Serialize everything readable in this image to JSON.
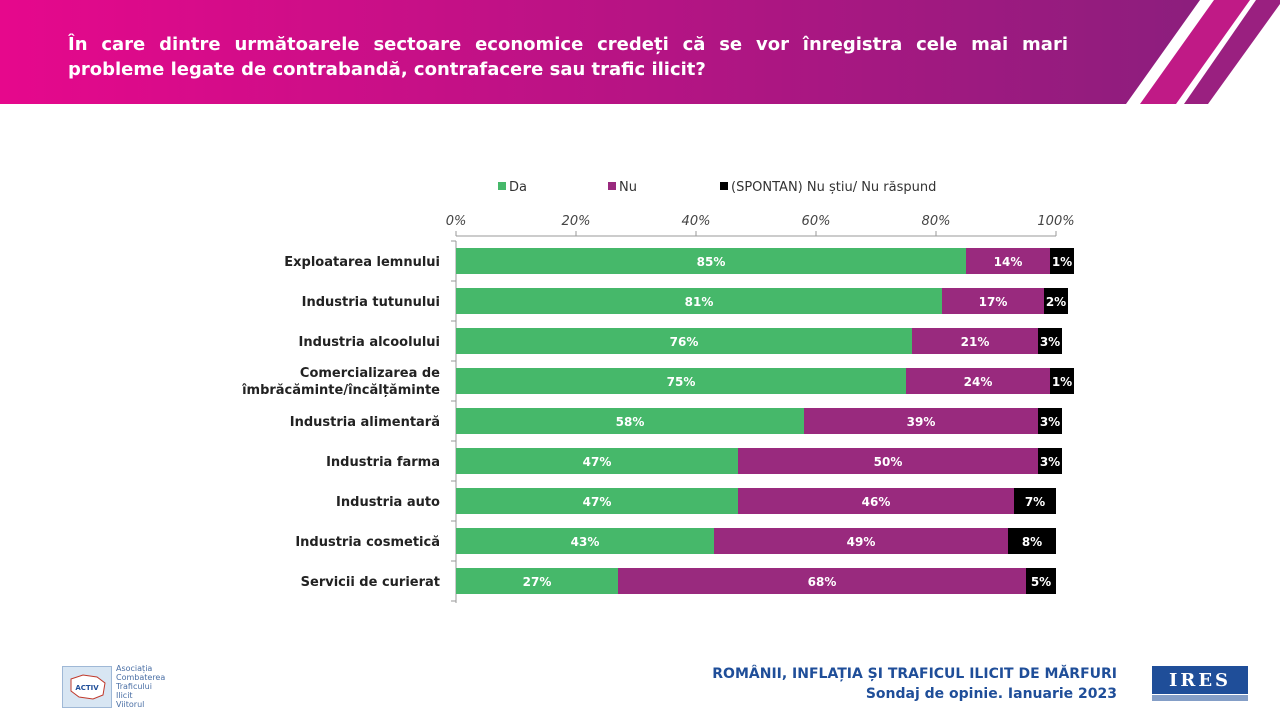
{
  "header": {
    "title": "În care dintre următoarele sectoare economice credeți că se vor înregistra cele mai mari probleme legate de contrabandă, contrafacere sau trafic ilicit?",
    "colors": {
      "left": "#e6088c",
      "right": "#8c1e7d"
    }
  },
  "chart_data": {
    "type": "bar",
    "orientation": "horizontal",
    "stacked": true,
    "categories": [
      "Exploatarea lemnului",
      "Industria tutunului",
      "Industria alcoolului",
      "Comercializarea de îmbrăcăminte/încălțăminte",
      "Industria alimentară",
      "Industria farma",
      "Industria auto",
      "Industria cosmetică",
      "Servicii de curierat"
    ],
    "series": [
      {
        "name": "Da",
        "color": "#46b86a",
        "values": [
          85,
          81,
          76,
          75,
          58,
          47,
          47,
          43,
          27
        ]
      },
      {
        "name": "Nu",
        "color": "#992a7e",
        "values": [
          14,
          17,
          21,
          24,
          39,
          50,
          46,
          49,
          68
        ]
      },
      {
        "name": "(SPONTAN) Nu știu/ Nu răspund",
        "color": "#000000",
        "values": [
          1,
          2,
          3,
          1,
          3,
          3,
          7,
          8,
          5
        ]
      }
    ],
    "xticks": [
      "0%",
      "20%",
      "40%",
      "60%",
      "80%",
      "100%"
    ],
    "xlim": [
      0,
      100
    ],
    "legend_position": "top",
    "grid": false
  },
  "footer": {
    "line1": "ROMÂNII, INFLAȚIA ȘI TRAFICUL ILICIT DE MĂRFURI",
    "line2": "Sondaj de opinie. Ianuarie 2023"
  },
  "logos": {
    "activ_lines": [
      "Asociația",
      "Combaterea",
      "Traficului",
      "Ilicit",
      "Viitorul"
    ],
    "activ_box": "ACTIV",
    "ires": "IRES"
  }
}
